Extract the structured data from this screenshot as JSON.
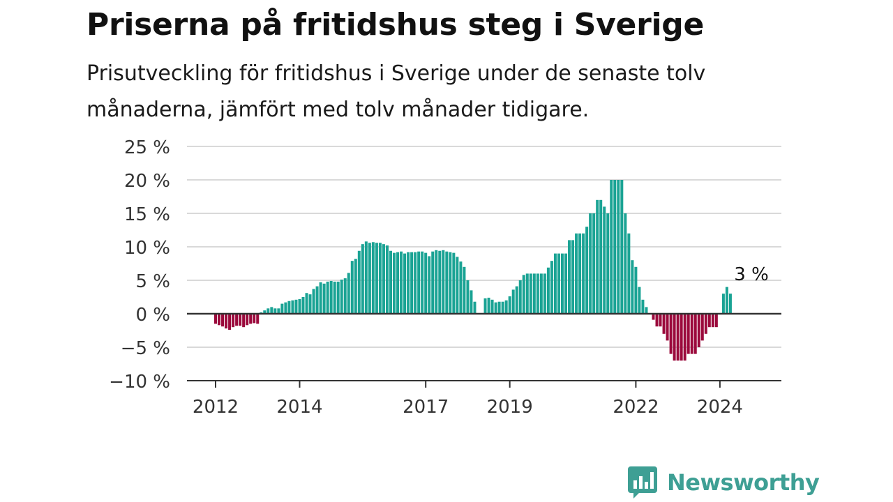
{
  "title": "Priserna på fritidshus steg i Sverige",
  "subtitle": "Prisutveckling för fritidshus i Sverige under de senaste tolv månaderna, jämfört med tolv månader tidigare.",
  "brand": {
    "name": "Newsworthy",
    "logo_icon": "newsworthy-chart-bubble-icon"
  },
  "colors": {
    "positive": "#1aa394",
    "negative": "#9b0a3c",
    "grid": "#d9d9d9",
    "axis": "#333333",
    "brand": "#3e9f94"
  },
  "chart_data": {
    "type": "bar",
    "title": "Priserna på fritidshus steg i Sverige",
    "xlabel": "",
    "ylabel": "",
    "y_unit": "%",
    "ylim": [
      -10,
      25
    ],
    "y_ticks": [
      {
        "value": 25,
        "label": "25 %"
      },
      {
        "value": 20,
        "label": "20 %"
      },
      {
        "value": 15,
        "label": "15 %"
      },
      {
        "value": 10,
        "label": "10 %"
      },
      {
        "value": 5,
        "label": "5 %"
      },
      {
        "value": 0,
        "label": "0 %"
      },
      {
        "value": -5,
        "label": "−5 %"
      },
      {
        "value": -10,
        "label": "−10 %"
      }
    ],
    "x_ticks": [
      {
        "label": "2012",
        "month": "2012-01"
      },
      {
        "label": "2014",
        "month": "2014-01"
      },
      {
        "label": "2017",
        "month": "2017-01"
      },
      {
        "label": "2019",
        "month": "2019-01"
      },
      {
        "label": "2022",
        "month": "2022-01"
      },
      {
        "label": "2024",
        "month": "2024-01"
      }
    ],
    "grid": true,
    "annotations": [
      {
        "text": "3 %",
        "month": "2024-10"
      }
    ],
    "start_month": "2012-01",
    "end_month": "2024-10",
    "values": [
      -1.5,
      -1.7,
      -1.9,
      -2.2,
      -2.4,
      -2.0,
      -1.8,
      -1.8,
      -2.0,
      -1.7,
      -1.5,
      -1.4,
      -1.5,
      0.2,
      0.5,
      0.8,
      1.0,
      0.8,
      0.8,
      1.5,
      1.7,
      1.9,
      2.0,
      2.1,
      2.2,
      2.5,
      3.1,
      2.9,
      3.7,
      4.1,
      4.7,
      4.5,
      4.8,
      4.9,
      4.8,
      4.8,
      5.1,
      5.3,
      6.1,
      7.9,
      8.2,
      9.4,
      10.4,
      10.8,
      10.6,
      10.7,
      10.6,
      10.6,
      10.4,
      10.2,
      9.4,
      9.1,
      9.2,
      9.3,
      9.0,
      9.2,
      9.2,
      9.2,
      9.3,
      9.3,
      9.1,
      8.6,
      9.3,
      9.5,
      9.4,
      9.5,
      9.3,
      9.2,
      9.1,
      8.5,
      7.8,
      7.0,
      5.0,
      3.5,
      1.8,
      0.1,
      0.1,
      2.3,
      2.4,
      2.1,
      1.7,
      1.8,
      1.8,
      2.0,
      2.6,
      3.6,
      4.1,
      5.0,
      5.8,
      6.0,
      6.0,
      6.0,
      6.0,
      6.0,
      6.0,
      6.9,
      7.9,
      9.0,
      9.0,
      9.0,
      9.0,
      11.0,
      11.0,
      12.0,
      12.0,
      12.0,
      13.0,
      15.0,
      15.0,
      17.0,
      17.0,
      16.0,
      15.0,
      20.0,
      20.0,
      20.0,
      20.0,
      15.0,
      12.0,
      8.0,
      7.0,
      4.0,
      2.1,
      1.0,
      -0.1,
      -0.9,
      -1.9,
      -1.9,
      -3.0,
      -4.0,
      -6.0,
      -7.0,
      -7.0,
      -7.0,
      -7.0,
      -6.0,
      -6.0,
      -6.0,
      -5.0,
      -4.0,
      -3.0,
      -2.0,
      -2.0,
      -2.0,
      0.0,
      3.0,
      4.0,
      3.0
    ]
  }
}
